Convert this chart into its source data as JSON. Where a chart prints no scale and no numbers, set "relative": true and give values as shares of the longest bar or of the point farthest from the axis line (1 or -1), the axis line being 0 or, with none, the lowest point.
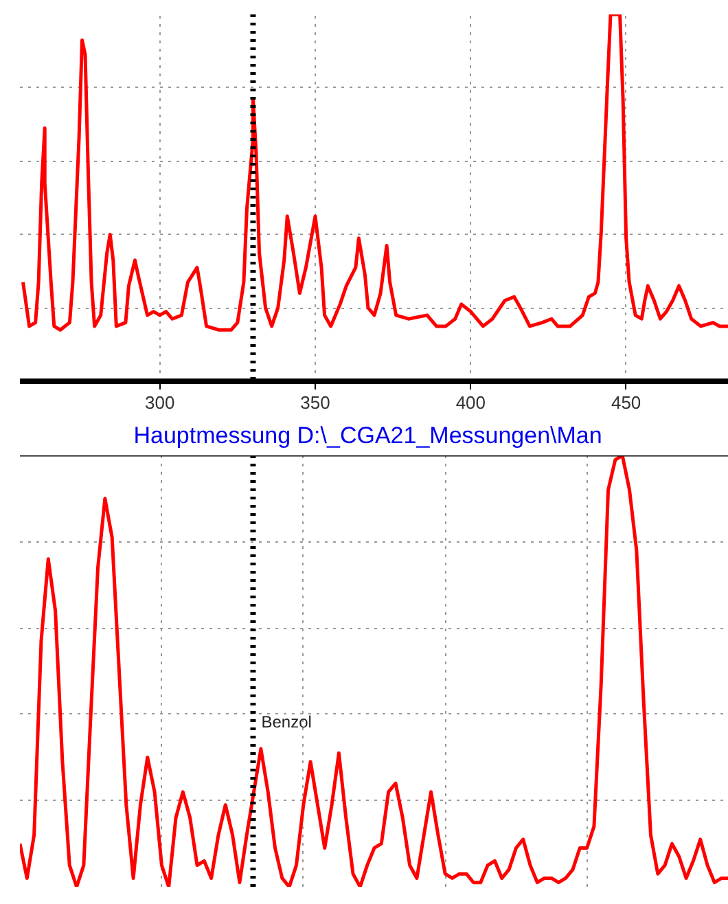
{
  "chart_data": [
    {
      "type": "line",
      "xlim": [
        255,
        483
      ],
      "xticks": [
        300,
        350,
        400,
        450
      ],
      "relative": true,
      "grid": true,
      "tick_labels": "x",
      "x": [
        256,
        258,
        260,
        261,
        262,
        263,
        263,
        265,
        266,
        268,
        271,
        272,
        274,
        275,
        276,
        277,
        278,
        279,
        281,
        283,
        284,
        285,
        286,
        289,
        290,
        292,
        293,
        296,
        298,
        300,
        302,
        304,
        307,
        309,
        312,
        313,
        315,
        319,
        323,
        325,
        327,
        328,
        330,
        330,
        331,
        332,
        334,
        336,
        338,
        340,
        341,
        343,
        345,
        347,
        350,
        352,
        353,
        355,
        358,
        360,
        363,
        364,
        366,
        367,
        369,
        371,
        373,
        374,
        376,
        380,
        386,
        389,
        392,
        395,
        397,
        400,
        404,
        407,
        411,
        414,
        416,
        419,
        423,
        426,
        428,
        432,
        436,
        438,
        440,
        441,
        442,
        444,
        445,
        448,
        449,
        450,
        451,
        453,
        455,
        456,
        457,
        459,
        461,
        463,
        465,
        467,
        469,
        471,
        474,
        478,
        480,
        483
      ],
      "series": [
        {
          "color": "#ff0000",
          "line_style": "solid",
          "values": [
            0.27,
            0.15,
            0.16,
            0.27,
            0.54,
            0.69,
            0.54,
            0.27,
            0.15,
            0.14,
            0.16,
            0.27,
            0.66,
            0.93,
            0.89,
            0.56,
            0.27,
            0.15,
            0.18,
            0.35,
            0.4,
            0.33,
            0.15,
            0.16,
            0.26,
            0.33,
            0.29,
            0.18,
            0.19,
            0.18,
            0.19,
            0.17,
            0.18,
            0.27,
            0.31,
            0.26,
            0.15,
            0.14,
            0.14,
            0.16,
            0.27,
            0.47,
            0.66,
            0.77,
            0.62,
            0.35,
            0.2,
            0.15,
            0.2,
            0.33,
            0.45,
            0.35,
            0.24,
            0.31,
            0.45,
            0.31,
            0.18,
            0.15,
            0.21,
            0.26,
            0.31,
            0.39,
            0.29,
            0.2,
            0.18,
            0.24,
            0.37,
            0.27,
            0.18,
            0.17,
            0.18,
            0.15,
            0.15,
            0.17,
            0.21,
            0.19,
            0.15,
            0.17,
            0.22,
            0.23,
            0.2,
            0.15,
            0.16,
            0.17,
            0.15,
            0.15,
            0.18,
            0.23,
            0.24,
            0.27,
            0.41,
            0.81,
            1,
            1,
            0.77,
            0.39,
            0.27,
            0.18,
            0.17,
            0.22,
            0.26,
            0.22,
            0.17,
            0.19,
            0.22,
            0.26,
            0.22,
            0.17,
            0.15,
            0.16,
            0.15,
            0.15
          ]
        }
      ],
      "ref_lines": [
        {
          "axis": "x",
          "value": 330,
          "color": "#000000",
          "line_style": "dotted"
        }
      ]
    },
    {
      "type": "line",
      "title": "Hauptmessung   D:\\_CGA21_Messungen\\Man",
      "relative": true,
      "grid": true,
      "tick_labels": false,
      "categories": [
        null,
        null,
        null,
        null,
        null,
        null,
        null,
        null,
        null,
        null,
        null,
        null,
        null,
        null,
        null,
        null,
        null,
        null,
        null,
        null,
        null,
        null,
        null,
        null,
        null,
        null,
        null,
        null,
        null,
        null,
        null,
        null,
        null,
        null,
        null,
        null,
        null,
        null,
        null,
        null,
        null,
        null,
        null,
        null,
        null,
        null,
        null,
        null,
        null,
        null,
        null,
        null,
        null,
        null,
        null,
        null,
        null,
        null,
        null,
        null,
        null,
        null,
        null,
        null,
        null,
        null,
        null,
        null,
        null,
        null,
        null,
        null,
        null,
        null,
        null,
        null,
        null,
        null,
        null,
        null,
        null,
        null,
        null,
        null,
        null,
        null,
        null,
        null,
        null,
        null,
        null,
        null,
        null,
        null,
        null,
        null,
        null,
        null,
        null,
        null,
        null
      ],
      "series": [
        {
          "color": "#ff0000",
          "line_style": "solid",
          "values": [
            0.1,
            0.02,
            0.12,
            0.57,
            0.76,
            0.64,
            0.29,
            0.05,
            0,
            0.05,
            0.4,
            0.74,
            0.9,
            0.81,
            0.5,
            0.19,
            0.02,
            0.19,
            0.3,
            0.22,
            0.05,
            0,
            0.16,
            0.22,
            0.16,
            0.05,
            0.06,
            0.02,
            0.12,
            0.19,
            0.12,
            0.01,
            0.12,
            0.22,
            0.32,
            0.22,
            0.09,
            0.02,
            0,
            0.05,
            0.19,
            0.29,
            0.19,
            0.09,
            0.19,
            0.31,
            0.16,
            0.03,
            0,
            0.05,
            0.09,
            0.1,
            0.22,
            0.24,
            0.16,
            0.05,
            0.02,
            0.12,
            0.22,
            0.12,
            0.03,
            0.02,
            0.03,
            0.03,
            0.01,
            0.01,
            0.05,
            0.06,
            0.02,
            0.04,
            0.09,
            0.11,
            0.05,
            0.01,
            0.02,
            0.02,
            0.01,
            0.02,
            0.04,
            0.09,
            0.09,
            0.14,
            0.47,
            0.92,
            0.99,
            1,
            0.92,
            0.78,
            0.43,
            0.12,
            0.03,
            0.05,
            0.1,
            0.07,
            0.02,
            0.06,
            0.11,
            0.05,
            0.01,
            0.02,
            0.02
          ]
        }
      ],
      "annotations": [
        "Benzol"
      ]
    }
  ]
}
